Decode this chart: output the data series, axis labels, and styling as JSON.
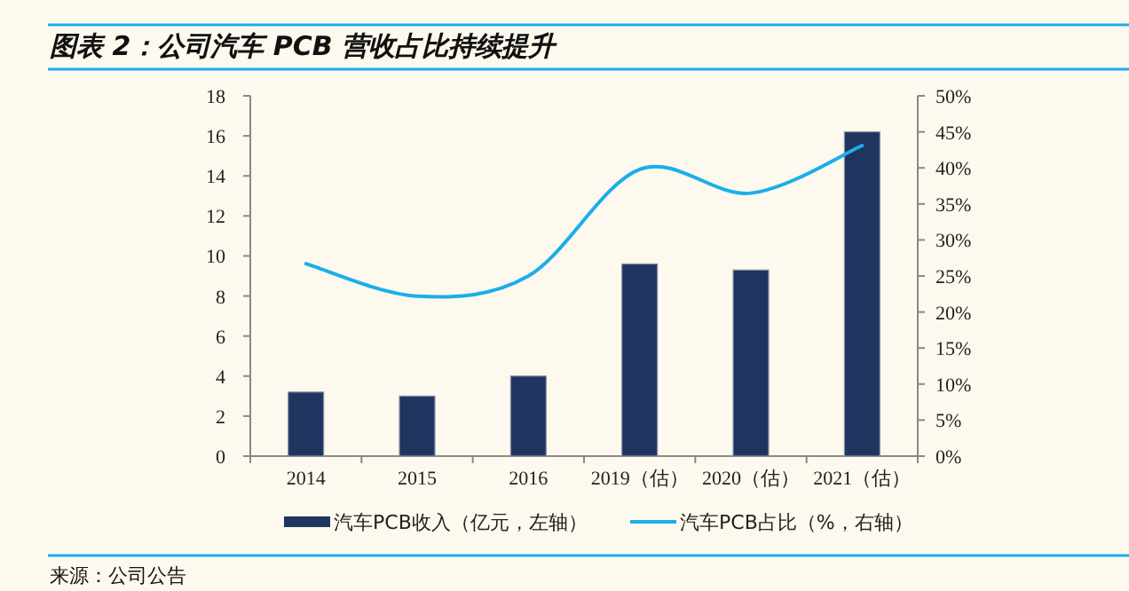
{
  "chart_data": {
    "type": "bar",
    "title": "图表 2：公司汽车 PCB 营收占比持续提升",
    "categories": [
      "2014",
      "2015",
      "2016",
      "2019（估）",
      "2020（估）",
      "2021（估）"
    ],
    "series": [
      {
        "name": "汽车PCB收入（亿元，左轴）",
        "color": "#1f3560",
        "values": [
          3.2,
          3.0,
          4.0,
          9.6,
          9.3,
          16.2
        ]
      },
      {
        "name": "汽车PCB占比（%，右轴）",
        "type": "line",
        "axis": "y2",
        "color": "#1aaeea",
        "values": [
          26.7,
          22.2,
          25.0,
          39.8,
          36.5,
          43.1
        ]
      }
    ],
    "ylim": [
      0,
      18
    ],
    "yticks": [
      0,
      2,
      4,
      6,
      8,
      10,
      12,
      14,
      16,
      18
    ],
    "y2lim": [
      0,
      50
    ],
    "y2ticks": [
      {
        "value": 0,
        "label": "0%"
      },
      {
        "value": 5,
        "label": "5%"
      },
      {
        "value": 10,
        "label": "10%"
      },
      {
        "value": 15,
        "label": "15%"
      },
      {
        "value": 20,
        "label": "20%"
      },
      {
        "value": 25,
        "label": "25%"
      },
      {
        "value": 30,
        "label": "30%"
      },
      {
        "value": 35,
        "label": "35%"
      },
      {
        "value": 40,
        "label": "40%"
      },
      {
        "value": 45,
        "label": "45%"
      },
      {
        "value": 50,
        "label": "50%"
      }
    ],
    "legend": "bottom",
    "annotations": [
      "来源：公司公告"
    ]
  }
}
